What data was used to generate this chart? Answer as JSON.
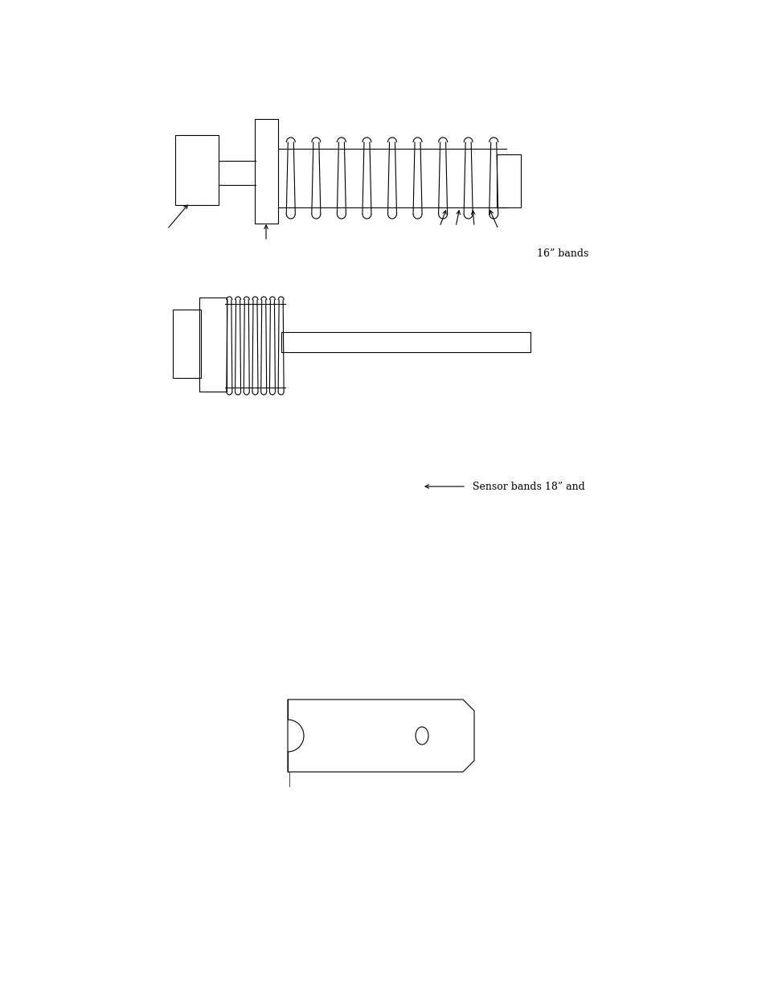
{
  "bg_color": "#ffffff",
  "fig_width": 9.54,
  "fig_height": 12.35,
  "text_16bands": "16” bands",
  "text_sensor_bands": "Sensor bands 18” and",
  "lw": 0.8
}
